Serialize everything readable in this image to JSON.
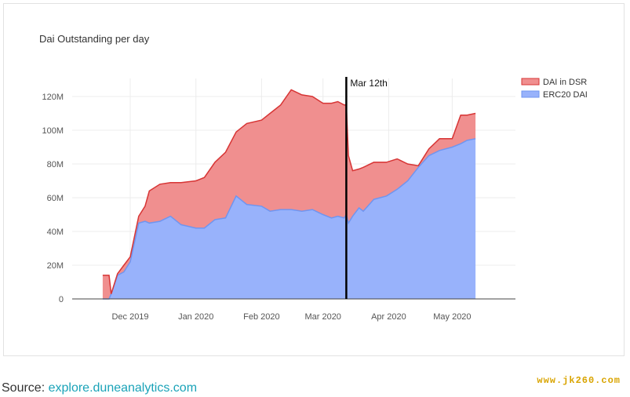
{
  "chart_data": {
    "type": "area",
    "title": "Dai Outstanding per day",
    "xlabel": "",
    "ylabel": "",
    "x_tick_labels": [
      "Dec 2019",
      "Jan 2020",
      "Feb 2020",
      "Mar 2020",
      "Apr 2020",
      "May 2020"
    ],
    "y_tick_labels": [
      "0",
      "20M",
      "40M",
      "60M",
      "80M",
      "100M",
      "120M"
    ],
    "ylim": [
      0,
      130000000
    ],
    "grid": true,
    "legend": "top-right",
    "stacked": true,
    "x": [
      "2019-11-18",
      "2019-11-21",
      "2019-11-22",
      "2019-11-25",
      "2019-11-28",
      "2019-12-01",
      "2019-12-05",
      "2019-12-08",
      "2019-12-10",
      "2019-12-15",
      "2019-12-20",
      "2019-12-25",
      "2020-01-01",
      "2020-01-05",
      "2020-01-10",
      "2020-01-15",
      "2020-01-20",
      "2020-01-25",
      "2020-02-01",
      "2020-02-05",
      "2020-02-10",
      "2020-02-15",
      "2020-02-20",
      "2020-02-25",
      "2020-03-01",
      "2020-03-05",
      "2020-03-08",
      "2020-03-11",
      "2020-03-12",
      "2020-03-13",
      "2020-03-15",
      "2020-03-18",
      "2020-03-20",
      "2020-03-25",
      "2020-03-31",
      "2020-04-05",
      "2020-04-10",
      "2020-04-15",
      "2020-04-20",
      "2020-04-25",
      "2020-05-01",
      "2020-05-05",
      "2020-05-08",
      "2020-05-12"
    ],
    "series": [
      {
        "name": "ERC20 DAI",
        "color": "#6f95f0",
        "fill": "#98b2fb",
        "values": [
          0,
          0,
          3000000,
          14000000,
          16000000,
          22000000,
          45000000,
          46000000,
          45000000,
          46000000,
          49000000,
          44000000,
          42000000,
          42000000,
          47000000,
          48000000,
          61000000,
          56000000,
          55000000,
          52000000,
          53000000,
          53000000,
          52000000,
          53000000,
          50000000,
          48000000,
          49000000,
          48000000,
          50000000,
          45000000,
          49000000,
          54000000,
          52000000,
          59000000,
          61000000,
          65000000,
          70000000,
          78000000,
          85000000,
          88000000,
          90000000,
          92000000,
          94000000,
          95000000
        ]
      },
      {
        "name": "DAI in DSR",
        "color": "#d73535",
        "fill": "#f08f8f",
        "values": [
          14000000,
          14000000,
          0,
          1000000,
          4000000,
          3000000,
          4000000,
          9000000,
          19000000,
          22000000,
          20000000,
          25000000,
          28000000,
          30000000,
          34000000,
          39000000,
          38000000,
          48000000,
          51000000,
          58000000,
          62000000,
          71000000,
          69000000,
          67000000,
          66000000,
          68000000,
          68000000,
          67000000,
          65000000,
          40000000,
          27000000,
          23000000,
          26000000,
          22000000,
          20000000,
          18000000,
          10000000,
          1000000,
          4000000,
          7000000,
          5000000,
          17000000,
          15000000,
          15000000
        ]
      }
    ],
    "annotations": [
      {
        "text": "Mar 12th",
        "x": "2020-03-12"
      }
    ]
  },
  "source": {
    "label": "Source:",
    "link_text": "explore.duneanalytics.com"
  },
  "watermark": "www.jk260.com"
}
